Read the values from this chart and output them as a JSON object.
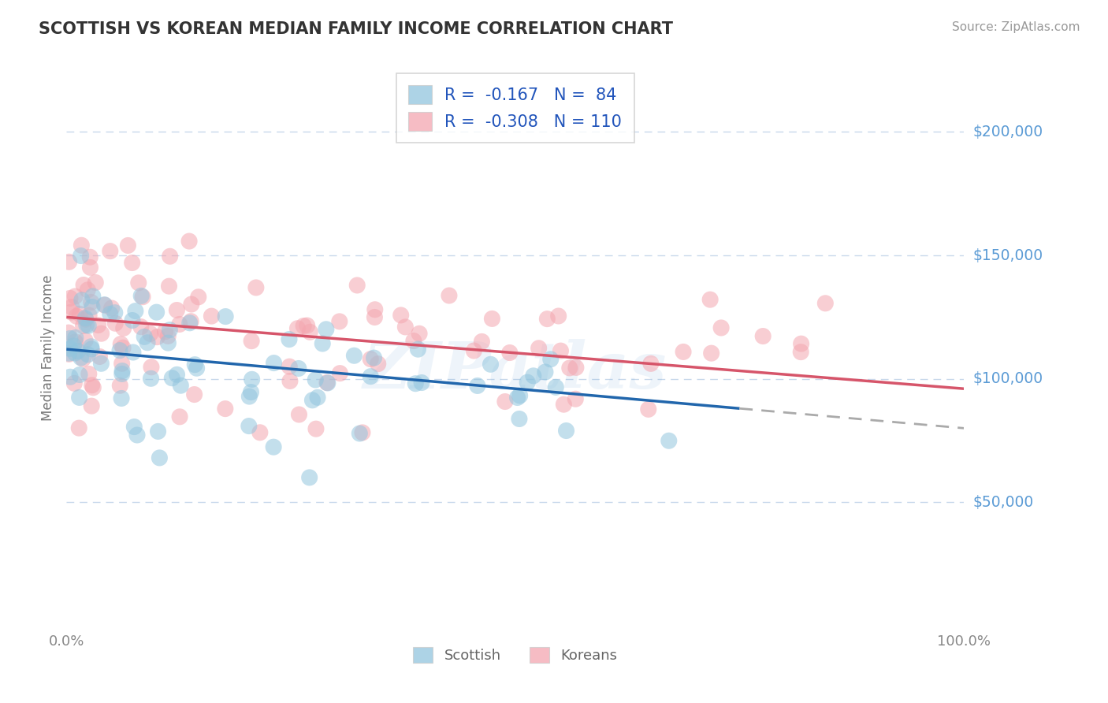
{
  "title": "SCOTTISH VS KOREAN MEDIAN FAMILY INCOME CORRELATION CHART",
  "source": "Source: ZipAtlas.com",
  "ylabel": "Median Family Income",
  "watermark": "ZIPatlas",
  "xmin": 0.0,
  "xmax": 100.0,
  "ymin": 0,
  "ymax": 225000,
  "yticks": [
    50000,
    100000,
    150000,
    200000
  ],
  "ytick_labels": [
    "$50,000",
    "$100,000",
    "$150,000",
    "$200,000"
  ],
  "legend_scottish_R": "-0.167",
  "legend_scottish_N": "84",
  "legend_korean_R": "-0.308",
  "legend_korean_N": "110",
  "scottish_color": "#92c5de",
  "korean_color": "#f4a6b0",
  "trend_scottish_color": "#2166ac",
  "trend_korean_color": "#d6556a",
  "axis_text_color": "#5b9bd5",
  "grid_color": "#c8d8eb",
  "background_color": "#ffffff",
  "title_color": "#333333",
  "ylabel_color": "#777777",
  "tick_label_color": "#888888",
  "legend_text_color": "#2255bb",
  "bottom_legend_color": "#666666",
  "watermark_color": "#5b9bd5",
  "scottish_trend_y0": 112000,
  "scottish_trend_y1": 88000,
  "scottish_trend_x1": 75,
  "korean_trend_y0": 125000,
  "korean_trend_y1": 96000
}
